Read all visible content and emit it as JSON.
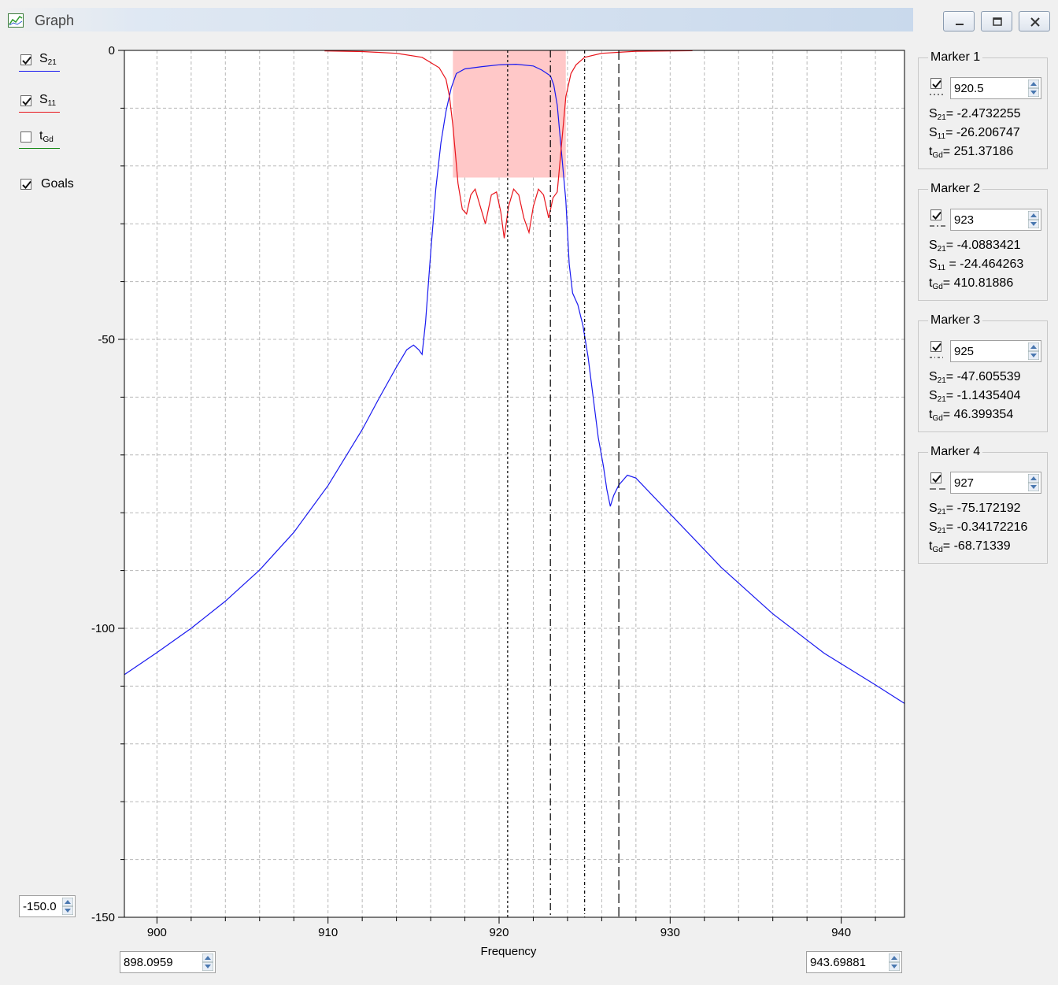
{
  "window": {
    "title": "Graph"
  },
  "legend": [
    {
      "key": "s21",
      "main": "S",
      "sub": "21",
      "checked": true,
      "color": "#1a1af0"
    },
    {
      "key": "s11",
      "main": "S",
      "sub": "11",
      "checked": true,
      "color": "#e8141b"
    },
    {
      "key": "tgd",
      "main": "t",
      "sub": "Gd",
      "checked": false,
      "color": "#1a8a1a"
    }
  ],
  "goals": {
    "label": "Goals",
    "checked": true
  },
  "controls": {
    "y_min": "-150.0",
    "x_min": "898.0959",
    "x_max": "943.69881"
  },
  "markers": [
    {
      "title": "Marker 1",
      "value": "920.5",
      "checked": true,
      "lines": [
        {
          "main": "S",
          "sub": "21",
          "text": "= -2.4732255"
        },
        {
          "main": "S",
          "sub": "11",
          "text": "= -26.206747"
        },
        {
          "main": "t",
          "sub": "Gd",
          "text": "= 251.37186"
        }
      ]
    },
    {
      "title": "Marker 2",
      "value": "923",
      "checked": true,
      "lines": [
        {
          "main": "S",
          "sub": "21",
          "text": "= -4.0883421"
        },
        {
          "main": "S",
          "sub": "11",
          "text": " = -24.464263"
        },
        {
          "main": "t",
          "sub": "Gd",
          "text": "= 410.81886"
        }
      ]
    },
    {
      "title": "Marker 3",
      "value": "925",
      "checked": true,
      "lines": [
        {
          "main": "S",
          "sub": "21",
          "text": "= -47.605539"
        },
        {
          "main": "S",
          "sub": "21",
          "text": "= -1.1435404"
        },
        {
          "main": "t",
          "sub": "Gd",
          "text": "= 46.399354"
        }
      ]
    },
    {
      "title": "Marker 4",
      "value": "927",
      "checked": true,
      "lines": [
        {
          "main": "S",
          "sub": "21",
          "text": "= -75.172192"
        },
        {
          "main": "S",
          "sub": "21",
          "text": "= -0.34172216"
        },
        {
          "main": "t",
          "sub": "Gd",
          "text": "= -68.71339"
        }
      ]
    }
  ],
  "chart_data": {
    "type": "line",
    "xlabel": "Frequency",
    "ylabel": "",
    "xlim": [
      898.0959,
      943.69881
    ],
    "ylim": [
      -150,
      0
    ],
    "x_ticks": [
      900,
      910,
      920,
      930,
      940
    ],
    "y_ticks": [
      0,
      -50,
      -100,
      -150
    ],
    "grid": true,
    "goal_region": {
      "x": [
        917.3,
        923.9
      ],
      "y": [
        -22,
        0
      ],
      "color": "#ffc8c8"
    },
    "marker_freqs": [
      920.5,
      923,
      925,
      927
    ],
    "series": [
      {
        "name": "S21",
        "color": "#1a1af0",
        "x": [
          898.1,
          900,
          902,
          904,
          906,
          908,
          910,
          912,
          913,
          914,
          914.6,
          915,
          915.3,
          915.5,
          915.7,
          916,
          916.3,
          916.6,
          916.9,
          917.2,
          917.5,
          918,
          919,
          920,
          921,
          922,
          922.5,
          923,
          923.2,
          923.4,
          923.6,
          923.9,
          924.1,
          924.3,
          924.6,
          924.9,
          925.2,
          925.5,
          925.8,
          926.1,
          926.3,
          926.5,
          926.7,
          927,
          927.5,
          928,
          930,
          933,
          936,
          939,
          942,
          943.7
        ],
        "values": [
          -108,
          -104.2,
          -100,
          -95.3,
          -89.9,
          -83.4,
          -75.3,
          -65.6,
          -60.1,
          -54.8,
          -51.8,
          -51,
          -51.8,
          -52.6,
          -47,
          -35,
          -24,
          -16,
          -10.5,
          -6.5,
          -4,
          -3.2,
          -2.8,
          -2.5,
          -2.4,
          -2.7,
          -3.4,
          -4.4,
          -6,
          -9.5,
          -16,
          -26,
          -37,
          -42,
          -44,
          -47.6,
          -53,
          -60,
          -67,
          -72,
          -76,
          -78.9,
          -77,
          -75.2,
          -73.5,
          -74,
          -80.2,
          -89.5,
          -97.5,
          -104.3,
          -109.8,
          -113
        ]
      },
      {
        "name": "S11",
        "color": "#e8141b",
        "x": [
          909.8,
          912,
          914,
          915.5,
          916.5,
          916.9,
          917.1,
          917.3,
          917.45,
          917.6,
          917.85,
          918.1,
          918.35,
          918.6,
          918.9,
          919.2,
          919.55,
          919.85,
          920.1,
          920.3,
          920.55,
          920.85,
          921.15,
          921.45,
          921.75,
          922.0,
          922.3,
          922.6,
          922.9,
          923.15,
          923.4,
          923.6,
          923.9,
          924.2,
          924.5,
          925,
          926,
          928,
          931.3
        ],
        "values": [
          -0.1,
          -0.2,
          -0.5,
          -1.2,
          -3,
          -5,
          -8,
          -13,
          -18,
          -23,
          -27.5,
          -28.3,
          -25,
          -24,
          -27,
          -30,
          -25,
          -24.5,
          -28,
          -32.5,
          -27,
          -24,
          -25,
          -29,
          -31.5,
          -27,
          -24,
          -25,
          -29,
          -25.5,
          -24.5,
          -18,
          -8,
          -4,
          -2.5,
          -1.2,
          -0.5,
          -0.15,
          -0.05
        ]
      }
    ]
  }
}
